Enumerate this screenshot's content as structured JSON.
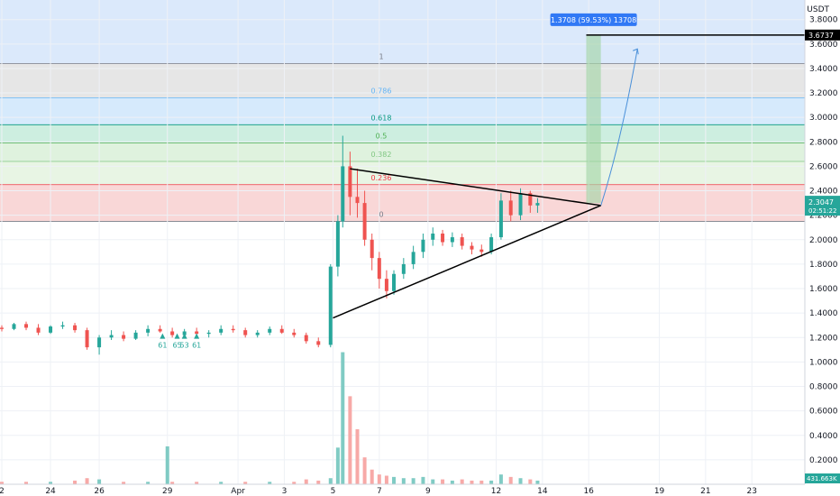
{
  "chart_data": {
    "type": "candlestick",
    "currency": "USDT",
    "ylim": [
      0.0,
      3.96
    ],
    "y_ticks": [
      "3.8000",
      "3.6000",
      "3.4000",
      "3.2000",
      "3.0000",
      "2.8000",
      "2.6000",
      "2.4000",
      "2.2000",
      "2.0000",
      "1.8000",
      "1.6000",
      "1.4000",
      "1.2000",
      "1.0000",
      "0.8000",
      "0.6000",
      "0.4000",
      "0.2000"
    ],
    "y_tick_values": [
      3.8,
      3.6,
      3.4,
      3.2,
      3.0,
      2.8,
      2.6,
      2.4,
      2.2,
      2.0,
      1.8,
      1.6,
      1.4,
      1.2,
      1.0,
      0.8,
      0.6,
      0.4,
      0.2
    ],
    "x_ticks": [
      "2",
      "24",
      "26",
      "29",
      "Apr",
      "3",
      "5",
      "7",
      "9",
      "12",
      "14",
      "16",
      "19",
      "21",
      "23"
    ],
    "x_tick_values": [
      0,
      2,
      4,
      6.8,
      9.7,
      11.6,
      13.6,
      15.5,
      17.5,
      20.3,
      22.2,
      24.1,
      27,
      28.9,
      30.8
    ],
    "fib_levels": [
      {
        "label": "1",
        "value": 3.44,
        "color": "#787b86"
      },
      {
        "label": "0.786",
        "value": 3.16,
        "color": "#64b5f6"
      },
      {
        "label": "0.618",
        "value": 2.94,
        "color": "#089981"
      },
      {
        "label": "0.5",
        "value": 2.79,
        "color": "#4caf50"
      },
      {
        "label": "0.382",
        "value": 2.64,
        "color": "#81c784"
      },
      {
        "label": "0.236",
        "value": 2.45,
        "color": "#f23645"
      },
      {
        "label": "0",
        "value": 2.15,
        "color": "#787b86"
      }
    ],
    "candles": [
      [
        0.0,
        1.28,
        1.3,
        1.25,
        1.27
      ],
      [
        0.5,
        1.27,
        1.32,
        1.26,
        1.31
      ],
      [
        1.0,
        1.31,
        1.33,
        1.26,
        1.28
      ],
      [
        1.5,
        1.28,
        1.31,
        1.22,
        1.24
      ],
      [
        2.0,
        1.24,
        1.3,
        1.23,
        1.29
      ],
      [
        2.5,
        1.29,
        1.33,
        1.27,
        1.3
      ],
      [
        3.0,
        1.3,
        1.32,
        1.24,
        1.26
      ],
      [
        3.5,
        1.26,
        1.28,
        1.1,
        1.12
      ],
      [
        4.0,
        1.12,
        1.22,
        1.06,
        1.2
      ],
      [
        4.5,
        1.2,
        1.26,
        1.18,
        1.22
      ],
      [
        5.0,
        1.22,
        1.25,
        1.17,
        1.19
      ],
      [
        5.5,
        1.19,
        1.26,
        1.18,
        1.24
      ],
      [
        6.0,
        1.24,
        1.3,
        1.21,
        1.27
      ],
      [
        6.5,
        1.27,
        1.3,
        1.24,
        1.25
      ],
      [
        7.0,
        1.25,
        1.28,
        1.2,
        1.22
      ],
      [
        7.5,
        1.22,
        1.27,
        1.2,
        1.25
      ],
      [
        8.0,
        1.25,
        1.28,
        1.21,
        1.23
      ],
      [
        8.5,
        1.23,
        1.26,
        1.2,
        1.24
      ],
      [
        9.0,
        1.24,
        1.3,
        1.22,
        1.27
      ],
      [
        9.5,
        1.27,
        1.3,
        1.24,
        1.26
      ],
      [
        10.0,
        1.26,
        1.28,
        1.2,
        1.22
      ],
      [
        10.5,
        1.22,
        1.26,
        1.2,
        1.24
      ],
      [
        11.0,
        1.24,
        1.29,
        1.22,
        1.27
      ],
      [
        11.5,
        1.27,
        1.3,
        1.23,
        1.24
      ],
      [
        12.0,
        1.24,
        1.27,
        1.2,
        1.22
      ],
      [
        12.5,
        1.22,
        1.24,
        1.15,
        1.17
      ],
      [
        13.0,
        1.17,
        1.2,
        1.12,
        1.14
      ],
      [
        13.5,
        1.14,
        1.8,
        1.12,
        1.78
      ],
      [
        13.8,
        1.78,
        2.2,
        1.7,
        2.15
      ],
      [
        14.0,
        2.15,
        2.85,
        2.1,
        2.6
      ],
      [
        14.3,
        2.6,
        2.72,
        2.2,
        2.35
      ],
      [
        14.6,
        2.35,
        2.58,
        2.18,
        2.3
      ],
      [
        14.9,
        2.3,
        2.4,
        1.95,
        2.0
      ],
      [
        15.2,
        2.0,
        2.05,
        1.75,
        1.85
      ],
      [
        15.5,
        1.85,
        1.9,
        1.6,
        1.68
      ],
      [
        15.8,
        1.68,
        1.75,
        1.52,
        1.58
      ],
      [
        16.1,
        1.58,
        1.75,
        1.55,
        1.72
      ],
      [
        16.5,
        1.72,
        1.85,
        1.68,
        1.8
      ],
      [
        16.9,
        1.8,
        1.95,
        1.76,
        1.9
      ],
      [
        17.3,
        1.9,
        2.05,
        1.85,
        2.0
      ],
      [
        17.7,
        2.0,
        2.1,
        1.95,
        2.05
      ],
      [
        18.1,
        2.05,
        2.08,
        1.95,
        1.98
      ],
      [
        18.5,
        1.98,
        2.06,
        1.94,
        2.02
      ],
      [
        18.9,
        2.02,
        2.05,
        1.92,
        1.95
      ],
      [
        19.3,
        1.95,
        1.98,
        1.88,
        1.92
      ],
      [
        19.7,
        1.92,
        1.96,
        1.86,
        1.9
      ],
      [
        20.1,
        1.9,
        2.05,
        1.88,
        2.02
      ],
      [
        20.5,
        2.02,
        2.38,
        2.0,
        2.32
      ],
      [
        20.9,
        2.32,
        2.4,
        2.15,
        2.2
      ],
      [
        21.3,
        2.2,
        2.42,
        2.16,
        2.38
      ],
      [
        21.7,
        2.38,
        2.4,
        2.22,
        2.28
      ],
      [
        22.0,
        2.28,
        2.34,
        2.22,
        2.3
      ]
    ],
    "volumes": [
      [
        0.0,
        0.02
      ],
      [
        1.0,
        0.02
      ],
      [
        2.0,
        0.02
      ],
      [
        3.0,
        0.03
      ],
      [
        3.5,
        0.05
      ],
      [
        4.0,
        0.04
      ],
      [
        5.0,
        0.02
      ],
      [
        6.0,
        0.02
      ],
      [
        6.8,
        0.31
      ],
      [
        7.0,
        0.02
      ],
      [
        8.0,
        0.02
      ],
      [
        9.0,
        0.02
      ],
      [
        10.0,
        0.02
      ],
      [
        11.0,
        0.02
      ],
      [
        12.0,
        0.02
      ],
      [
        12.5,
        0.04
      ],
      [
        13.0,
        0.03
      ],
      [
        13.5,
        0.05
      ],
      [
        13.8,
        0.3
      ],
      [
        14.0,
        1.08
      ],
      [
        14.3,
        0.72
      ],
      [
        14.6,
        0.45
      ],
      [
        14.9,
        0.22
      ],
      [
        15.2,
        0.12
      ],
      [
        15.5,
        0.08
      ],
      [
        15.8,
        0.07
      ],
      [
        16.1,
        0.06
      ],
      [
        16.5,
        0.05
      ],
      [
        16.9,
        0.05
      ],
      [
        17.3,
        0.06
      ],
      [
        17.7,
        0.04
      ],
      [
        18.1,
        0.04
      ],
      [
        18.5,
        0.03
      ],
      [
        18.9,
        0.04
      ],
      [
        19.3,
        0.03
      ],
      [
        19.7,
        0.03
      ],
      [
        20.1,
        0.03
      ],
      [
        20.5,
        0.08
      ],
      [
        20.9,
        0.06
      ],
      [
        21.3,
        0.05
      ],
      [
        21.7,
        0.04
      ],
      [
        22.0,
        0.03
      ]
    ],
    "triangle": {
      "upper": [
        [
          14.3,
          2.58
        ],
        [
          24.6,
          2.28
        ]
      ],
      "lower": [
        [
          13.6,
          1.36
        ],
        [
          24.6,
          2.28
        ]
      ],
      "apex": [
        24.6,
        2.28
      ]
    },
    "projection": {
      "from": [
        24.6,
        2.28
      ],
      "to": [
        26.1,
        3.56
      ],
      "target": 3.6737
    },
    "measure_box": {
      "x": [
        24.0,
        24.6
      ],
      "y": [
        2.3,
        3.6737
      ],
      "label": "1.3708 (59.53%) 13708"
    },
    "signals": [
      {
        "x": 6.6,
        "label": "61"
      },
      {
        "x": 7.2,
        "label": "65"
      },
      {
        "x": 7.5,
        "label": "53"
      },
      {
        "x": 8.0,
        "label": "61"
      }
    ],
    "target_price_label": "3.6737",
    "last_price_label": "2.3047",
    "countdown_label": "02:51:22",
    "volume_label": "431.663K",
    "colors": {
      "up": "#26a69a",
      "down": "#ef5350",
      "volume_up": "#80cbc4",
      "volume_down": "#f7a9a7",
      "band_top": "#dbe9fb",
      "band_grey": "#e6e6e6",
      "band_blue": "#d6eafc",
      "band_teal": "#cdeee0",
      "band_green": "#dff2de",
      "band_lightgreen": "#e8f5e4",
      "band_red": "#f9d7d7",
      "measure_fill": "#a5d6a7",
      "projection": "#4a90d9",
      "label_blue": "#3179f5"
    }
  }
}
